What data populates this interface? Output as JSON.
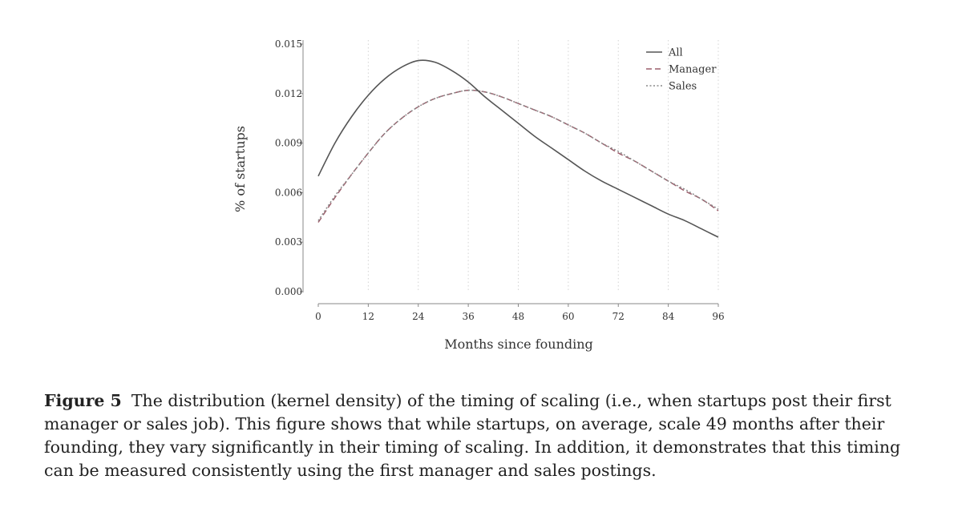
{
  "chart_data": {
    "type": "line",
    "xlabel": "Months since founding",
    "ylabel": "% of startups",
    "xlim": [
      0,
      96
    ],
    "ylim": [
      0,
      0.015
    ],
    "x_ticks": [
      0,
      12,
      24,
      36,
      48,
      60,
      72,
      84,
      96
    ],
    "y_ticks": [
      0.0,
      0.003,
      0.006,
      0.009,
      0.012,
      0.015
    ],
    "y_tick_labels": [
      "0.000",
      "0.003",
      "0.006",
      "0.009",
      "0.012",
      "0.015"
    ],
    "grid": "vertical dotted lines at x ticks",
    "legend_position": "top-right",
    "x": [
      0,
      4,
      8,
      12,
      16,
      20,
      24,
      28,
      32,
      36,
      40,
      44,
      48,
      52,
      56,
      60,
      64,
      68,
      72,
      76,
      80,
      84,
      88,
      92,
      96
    ],
    "series": [
      {
        "name": "All",
        "style": "solid",
        "color": "#555555",
        "values": [
          0.007,
          0.009,
          0.0106,
          0.0119,
          0.0129,
          0.0136,
          0.014,
          0.0139,
          0.0134,
          0.0127,
          0.0118,
          0.011,
          0.0102,
          0.0094,
          0.0087,
          0.008,
          0.0073,
          0.0067,
          0.0062,
          0.0057,
          0.0052,
          0.0047,
          0.0043,
          0.0038,
          0.0033
        ]
      },
      {
        "name": "Manager",
        "style": "dashed",
        "color": "#9c5f6c",
        "values": [
          0.0042,
          0.0057,
          0.0071,
          0.0084,
          0.0096,
          0.0105,
          0.0112,
          0.0117,
          0.012,
          0.0122,
          0.0121,
          0.0118,
          0.0114,
          0.011,
          0.0106,
          0.0101,
          0.0096,
          0.009,
          0.0084,
          0.0079,
          0.0073,
          0.0067,
          0.0061,
          0.0056,
          0.0049
        ]
      },
      {
        "name": "Sales",
        "style": "dotted",
        "color": "#8a8a8a",
        "values": [
          0.0043,
          0.0058,
          0.0071,
          0.0084,
          0.0096,
          0.0105,
          0.0112,
          0.0117,
          0.012,
          0.0122,
          0.0121,
          0.0118,
          0.0114,
          0.011,
          0.0106,
          0.0101,
          0.0096,
          0.009,
          0.0085,
          0.0079,
          0.0073,
          0.0067,
          0.0062,
          0.0056,
          0.005
        ]
      }
    ]
  },
  "caption": {
    "label": "Figure 5",
    "text": "The distribution (kernel density) of the timing of scaling (i.e., when startups post their first manager or sales job). This figure shows that while startups, on average, scale 49 months after their founding, they vary significantly in their timing of scaling. In addition, it demonstrates that this timing can be measured consistently using the first manager and sales postings."
  }
}
